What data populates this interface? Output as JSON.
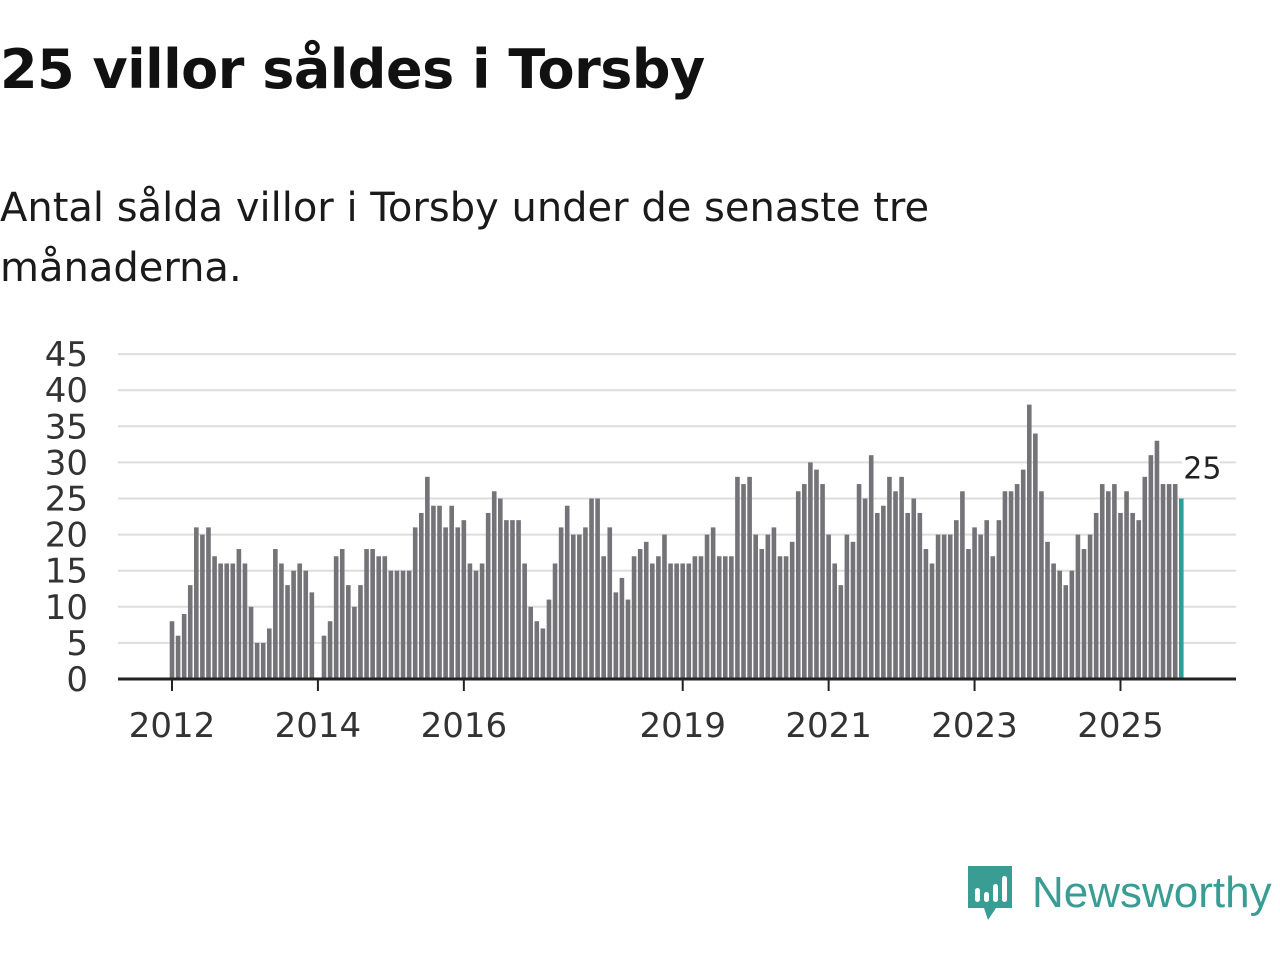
{
  "title": "25 villor såldes i Torsby",
  "subtitle": "Antal sålda villor i Torsby under de senaste tre månaderna.",
  "brand": {
    "name": "Newsworthy"
  },
  "colors": {
    "bar": "#737378",
    "highlight": "#2aa198",
    "grid": "#dddddd",
    "axis": "#222222",
    "brand": "#3a9d94"
  },
  "chart_data": {
    "type": "bar",
    "title": "",
    "xlabel": "",
    "ylabel": "",
    "ylim": [
      0,
      45
    ],
    "y_ticks": [
      0,
      5,
      10,
      15,
      20,
      25,
      30,
      35,
      40,
      45
    ],
    "x_tick_labels": [
      {
        "label": "2012",
        "index": 0
      },
      {
        "label": "2014",
        "index": 24
      },
      {
        "label": "2016",
        "index": 48
      },
      {
        "label": "2019",
        "index": 84
      },
      {
        "label": "2021",
        "index": 108
      },
      {
        "label": "2023",
        "index": 132
      },
      {
        "label": "2025",
        "index": 156
      }
    ],
    "start": "2012-01",
    "highlight_index": 166,
    "highlight_label": "25",
    "values": [
      8,
      6,
      9,
      13,
      21,
      20,
      21,
      17,
      16,
      16,
      16,
      18,
      16,
      10,
      5,
      5,
      7,
      18,
      16,
      13,
      15,
      16,
      15,
      12,
      0,
      6,
      8,
      17,
      18,
      13,
      10,
      13,
      18,
      18,
      17,
      17,
      15,
      15,
      15,
      15,
      21,
      23,
      28,
      24,
      24,
      21,
      24,
      21,
      22,
      16,
      15,
      16,
      23,
      26,
      25,
      22,
      22,
      22,
      16,
      10,
      8,
      7,
      11,
      16,
      21,
      24,
      20,
      20,
      21,
      25,
      25,
      17,
      21,
      12,
      14,
      11,
      17,
      18,
      19,
      16,
      17,
      20,
      16,
      16,
      16,
      16,
      17,
      17,
      20,
      21,
      17,
      17,
      17,
      28,
      27,
      28,
      20,
      18,
      20,
      21,
      17,
      17,
      19,
      26,
      27,
      30,
      29,
      27,
      20,
      16,
      13,
      20,
      19,
      27,
      25,
      31,
      23,
      24,
      28,
      26,
      28,
      23,
      25,
      23,
      18,
      16,
      20,
      20,
      20,
      22,
      26,
      18,
      21,
      20,
      22,
      17,
      22,
      26,
      26,
      27,
      29,
      38,
      34,
      26,
      19,
      16,
      15,
      13,
      15,
      20,
      18,
      20,
      23,
      27,
      26,
      27,
      23,
      26,
      23,
      22,
      28,
      31,
      33,
      27,
      27,
      27,
      25
    ]
  }
}
